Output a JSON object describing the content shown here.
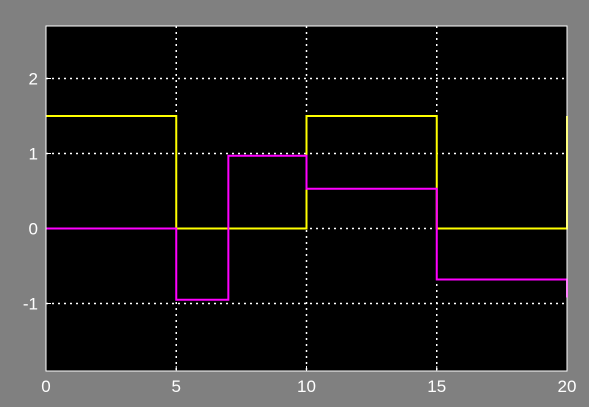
{
  "chart_data": {
    "type": "line",
    "step": true,
    "title": "",
    "xlabel": "",
    "ylabel": "",
    "xlim": [
      0,
      20
    ],
    "ylim": [
      -1.9,
      2.7
    ],
    "grid": true,
    "legend": "none",
    "background_color": "#000000",
    "frame_color": "#808080",
    "x_ticks": [
      0,
      5,
      10,
      15,
      20
    ],
    "x_tick_labels": [
      "0",
      "5",
      "10",
      "15",
      "20"
    ],
    "y_ticks": [
      -1,
      0,
      1,
      2
    ],
    "y_tick_labels": [
      "-1",
      "0",
      "1",
      "2"
    ],
    "series": [
      {
        "color": "#ffff00",
        "x": [
          0,
          5,
          10,
          15,
          20
        ],
        "y": [
          1.5,
          0,
          1.5,
          0,
          1.5
        ]
      },
      {
        "color": "#ff00ff",
        "x": [
          0,
          5,
          7,
          10,
          15,
          20
        ],
        "y": [
          0,
          -0.95,
          0.97,
          0.53,
          -0.68,
          -0.92
        ]
      }
    ]
  }
}
